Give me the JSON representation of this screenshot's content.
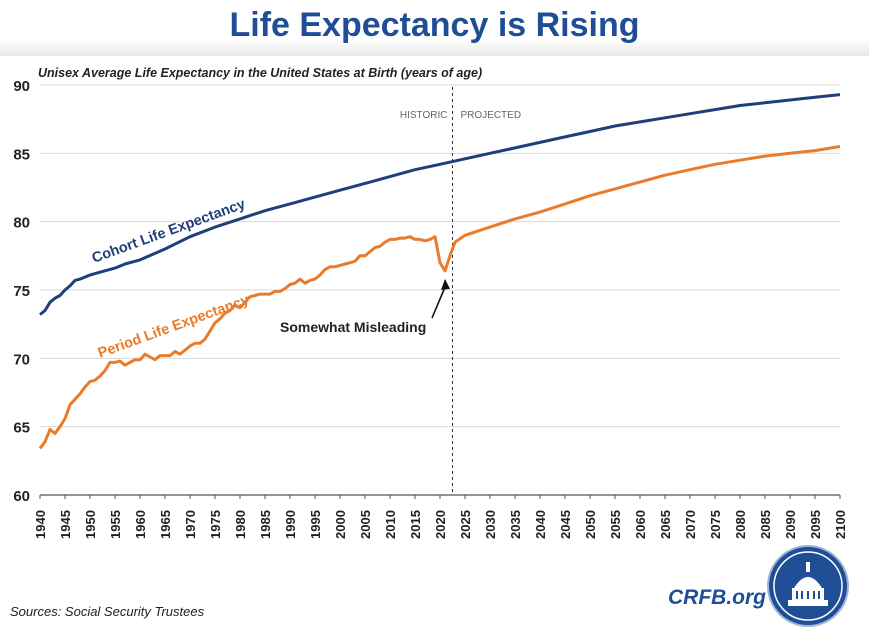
{
  "header": {
    "title": "Life Expectancy is Rising"
  },
  "footer": {
    "sources": "Sources: Social Security Trustees",
    "site": "CRFB.org"
  },
  "colors": {
    "cohort": "#1f3f7a",
    "period": "#e97b2b",
    "title": "#1f4e96"
  },
  "chart_data": {
    "type": "line",
    "title": "Life Expectancy is Rising",
    "subtitle": "Unisex Average Life Expectancy in the United States at Birth (years of age)",
    "xlabel": "",
    "ylabel": "",
    "xlim": [
      1940,
      2100
    ],
    "ylim": [
      60,
      90
    ],
    "yticks": [
      60,
      65,
      70,
      75,
      80,
      85,
      90
    ],
    "xticks": [
      1940,
      1945,
      1950,
      1955,
      1960,
      1965,
      1970,
      1975,
      1980,
      1985,
      1990,
      1995,
      2000,
      2005,
      2010,
      2015,
      2020,
      2025,
      2030,
      2035,
      2040,
      2045,
      2050,
      2055,
      2060,
      2065,
      2070,
      2075,
      2080,
      2085,
      2090,
      2095,
      2100
    ],
    "grid": true,
    "divider": {
      "x": 2022.5,
      "left_label": "HISTORIC",
      "right_label": "PROJECTED"
    },
    "series": [
      {
        "name": "Cohort Life Expectancy",
        "key": "cohort",
        "x": [
          1940,
          1941,
          1942,
          1943,
          1944,
          1945,
          1946,
          1947,
          1948,
          1950,
          1952,
          1955,
          1957,
          1960,
          1965,
          1970,
          1975,
          1980,
          1985,
          1990,
          1995,
          2000,
          2005,
          2010,
          2015,
          2020,
          2025,
          2030,
          2035,
          2040,
          2045,
          2050,
          2055,
          2060,
          2065,
          2070,
          2075,
          2080,
          2085,
          2090,
          2095,
          2100
        ],
        "values": [
          73.2,
          73.5,
          74.1,
          74.4,
          74.6,
          75.0,
          75.3,
          75.7,
          75.8,
          76.1,
          76.3,
          76.6,
          76.9,
          77.2,
          78.0,
          78.9,
          79.6,
          80.2,
          80.8,
          81.3,
          81.8,
          82.3,
          82.8,
          83.3,
          83.8,
          84.2,
          84.6,
          85.0,
          85.4,
          85.8,
          86.2,
          86.6,
          87.0,
          87.3,
          87.6,
          87.9,
          88.2,
          88.5,
          88.7,
          88.9,
          89.1,
          89.3
        ]
      },
      {
        "name": "Period Life Expectancy",
        "key": "period",
        "x": [
          1940,
          1941,
          1942,
          1943,
          1944,
          1945,
          1946,
          1947,
          1948,
          1949,
          1950,
          1951,
          1952,
          1953,
          1954,
          1955,
          1956,
          1957,
          1958,
          1959,
          1960,
          1961,
          1962,
          1963,
          1964,
          1965,
          1966,
          1967,
          1968,
          1969,
          1970,
          1971,
          1972,
          1973,
          1974,
          1975,
          1976,
          1977,
          1978,
          1979,
          1980,
          1981,
          1982,
          1983,
          1984,
          1985,
          1986,
          1987,
          1988,
          1989,
          1990,
          1991,
          1992,
          1993,
          1994,
          1995,
          1996,
          1997,
          1998,
          1999,
          2000,
          2001,
          2002,
          2003,
          2004,
          2005,
          2006,
          2007,
          2008,
          2009,
          2010,
          2011,
          2012,
          2013,
          2014,
          2015,
          2016,
          2017,
          2018,
          2019,
          2020,
          2021,
          2022,
          2023,
          2025,
          2030,
          2035,
          2040,
          2045,
          2050,
          2055,
          2060,
          2065,
          2070,
          2075,
          2080,
          2085,
          2090,
          2095,
          2100
        ],
        "values": [
          63.4,
          63.9,
          64.8,
          64.5,
          65.0,
          65.6,
          66.6,
          67.0,
          67.4,
          67.9,
          68.3,
          68.4,
          68.7,
          69.1,
          69.7,
          69.7,
          69.8,
          69.5,
          69.7,
          69.9,
          69.9,
          70.3,
          70.1,
          69.9,
          70.2,
          70.2,
          70.2,
          70.5,
          70.3,
          70.6,
          70.9,
          71.1,
          71.1,
          71.4,
          72.0,
          72.6,
          72.9,
          73.3,
          73.5,
          73.9,
          73.7,
          74.1,
          74.5,
          74.6,
          74.7,
          74.7,
          74.7,
          74.9,
          74.9,
          75.1,
          75.4,
          75.5,
          75.8,
          75.5,
          75.7,
          75.8,
          76.1,
          76.5,
          76.7,
          76.7,
          76.8,
          76.9,
          77.0,
          77.1,
          77.5,
          77.5,
          77.8,
          78.1,
          78.2,
          78.5,
          78.7,
          78.7,
          78.8,
          78.8,
          78.9,
          78.7,
          78.7,
          78.6,
          78.7,
          78.9,
          77.0,
          76.4,
          77.5,
          78.5,
          79.0,
          79.6,
          80.2,
          80.7,
          81.3,
          81.9,
          82.4,
          82.9,
          83.4,
          83.8,
          84.2,
          84.5,
          84.8,
          85.0,
          85.2,
          85.5
        ]
      }
    ],
    "annotations": [
      {
        "text": "Cohort Life Expectancy",
        "series": "cohort"
      },
      {
        "text": "Period Life Expectancy",
        "series": "period"
      },
      {
        "text": "Somewhat Misleading",
        "arrow_to": {
          "x": 2021,
          "y": 76.4
        }
      }
    ]
  }
}
